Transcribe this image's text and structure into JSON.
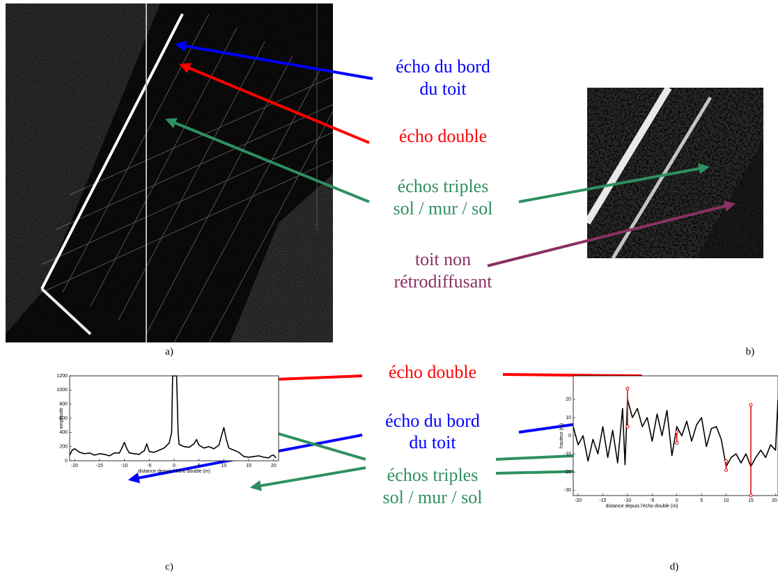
{
  "panel_labels": [
    "a)",
    "b)",
    "c)",
    "d)"
  ],
  "top_annotations": [
    "écho du bord",
    "du toit",
    "écho double",
    "échos triples",
    "sol / mur / sol",
    "toit non",
    "rétrodiffusant"
  ],
  "bottom_annotations": [
    "écho double",
    "écho du bord",
    "du toit",
    "échos triples",
    "sol / mur / sol"
  ],
  "chart_data": [
    {
      "type": "line",
      "xlabel": "distance depuis l'écho double (m)",
      "ylabel": "amplitude",
      "x": [
        -21,
        -20.5,
        -20,
        -19,
        -18,
        -17,
        -16,
        -15,
        -14,
        -13,
        -12,
        -11,
        -10.5,
        -10,
        -9.5,
        -9,
        -8,
        -7,
        -6.5,
        -6,
        -5.5,
        -5,
        -4,
        -3,
        -2,
        -1,
        -0.5,
        -0.3,
        0,
        0.5,
        0.8,
        1,
        2,
        3,
        4,
        4.5,
        5,
        6,
        7,
        8,
        9,
        9.5,
        10,
        10.5,
        11,
        12,
        13,
        14,
        15,
        16,
        17,
        18,
        19,
        19.5,
        20,
        20.5
      ],
      "series": [
        {
          "color": "#000000",
          "values": [
            80,
            150,
            170,
            120,
            100,
            110,
            80,
            100,
            90,
            70,
            110,
            110,
            180,
            260,
            170,
            110,
            100,
            90,
            120,
            140,
            240,
            130,
            120,
            150,
            180,
            250,
            400,
            1200,
            1200,
            1200,
            400,
            230,
            200,
            190,
            240,
            300,
            220,
            180,
            200,
            170,
            220,
            350,
            470,
            300,
            180,
            150,
            120,
            60,
            50,
            60,
            70,
            50,
            40,
            70,
            80,
            40
          ]
        }
      ],
      "xlim": [
        -21,
        21
      ],
      "ylim": [
        0,
        1200
      ],
      "xticks": [
        -20,
        -15,
        -10,
        -5,
        0,
        5,
        10,
        15,
        20
      ],
      "yticks": [
        0,
        200,
        400,
        600,
        800,
        1000,
        1200
      ]
    },
    {
      "type": "line",
      "xlabel": "distance depuis l'écho double (m)",
      "ylabel": "hauteur (m)",
      "x": [
        -21,
        -20,
        -19,
        -18,
        -17,
        -16,
        -15,
        -14,
        -13,
        -12,
        -11,
        -10.5,
        -10,
        -9,
        -8,
        -7,
        -6,
        -5,
        -4,
        -3,
        -2,
        -1,
        0,
        1,
        2,
        3,
        4,
        5,
        6,
        7,
        8,
        9,
        10,
        11,
        12,
        13,
        14,
        15,
        16,
        17,
        18,
        19,
        20,
        20.5
      ],
      "series": [
        {
          "color": "#000000",
          "values": [
            5,
            -5,
            0,
            -14,
            -2,
            -10,
            5,
            -12,
            3,
            -15,
            15,
            -16,
            20,
            10,
            15,
            5,
            10,
            -3,
            12,
            0,
            14,
            -11,
            5,
            0,
            8,
            -3,
            6,
            10,
            -6,
            4,
            5,
            -2,
            -17,
            -12,
            -10,
            -15,
            -10,
            -17,
            -12,
            -8,
            -12,
            -5,
            -8,
            20
          ]
        }
      ],
      "markers": {
        "color": "#e00000",
        "x": [
          -10,
          0,
          10,
          15
        ],
        "low": [
          5,
          -4,
          -19,
          -33
        ],
        "high": [
          26,
          2,
          -14,
          17
        ]
      },
      "xlim": [
        -21,
        20.5
      ],
      "ylim": [
        -33,
        33
      ],
      "xticks": [
        -20,
        -15,
        -10,
        -5,
        0,
        5,
        10,
        15,
        20
      ],
      "yticks": [
        -30,
        -20,
        -10,
        0,
        10,
        20
      ]
    }
  ]
}
